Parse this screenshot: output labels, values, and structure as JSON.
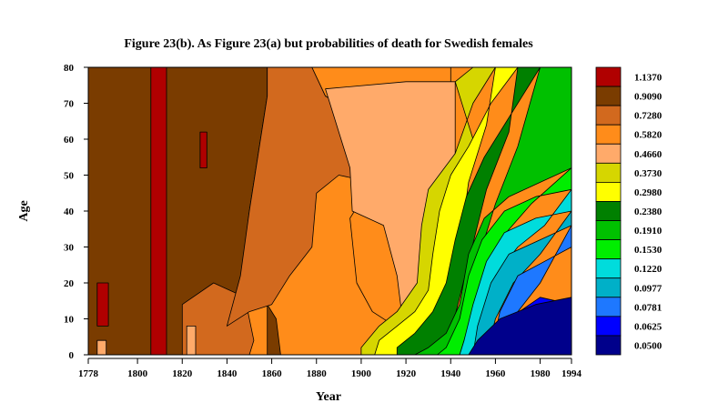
{
  "chart_data": {
    "type": "heatmap",
    "title": "Figure 23(b). As Figure 23(a) but probabilities of death for Swedish females",
    "xlabel": "Year",
    "ylabel": "Age",
    "xlim": [
      1778,
      1994
    ],
    "ylim": [
      0,
      80
    ],
    "x_ticks": [
      "1778",
      "1800",
      "1820",
      "1840",
      "1860",
      "1880",
      "1900",
      "1920",
      "1940",
      "1960",
      "1980",
      "1994"
    ],
    "y_ticks": [
      "0",
      "10",
      "20",
      "30",
      "40",
      "50",
      "60",
      "70",
      "80"
    ],
    "legend": {
      "position": "right",
      "levels": [
        {
          "label": "1.1370",
          "color": "#b00000"
        },
        {
          "label": "0.9090",
          "color": "#7a3c00"
        },
        {
          "label": "0.7280",
          "color": "#d2691e"
        },
        {
          "label": "0.5820",
          "color": "#ff8c1a"
        },
        {
          "label": "0.4660",
          "color": "#ffaa6a"
        },
        {
          "label": "0.3730",
          "color": "#d6d600"
        },
        {
          "label": "0.2980",
          "color": "#ffff00"
        },
        {
          "label": "0.2380",
          "color": "#008000"
        },
        {
          "label": "0.1910",
          "color": "#00c000"
        },
        {
          "label": "0.1530",
          "color": "#00ee00"
        },
        {
          "label": "0.1220",
          "color": "#00dcdc"
        },
        {
          "label": "0.0977",
          "color": "#00b0c8"
        },
        {
          "label": "0.0781",
          "color": "#1e78ff"
        },
        {
          "label": "0.0625",
          "color": "#0000ff"
        },
        {
          "label": "0.0500",
          "color": "#00008b"
        }
      ]
    }
  }
}
